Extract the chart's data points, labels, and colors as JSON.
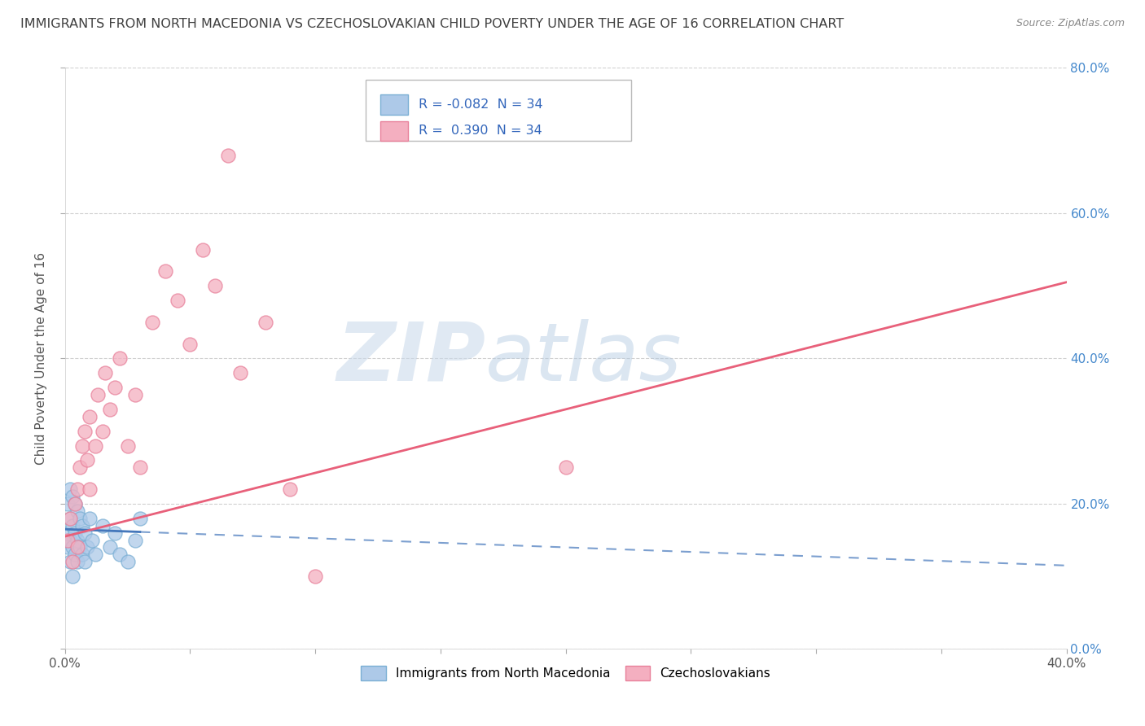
{
  "title": "IMMIGRANTS FROM NORTH MACEDONIA VS CZECHOSLOVAKIAN CHILD POVERTY UNDER THE AGE OF 16 CORRELATION CHART",
  "source": "Source: ZipAtlas.com",
  "ylabel": "Child Poverty Under the Age of 16",
  "ylabel_right_ticks": [
    "0.0%",
    "20.0%",
    "40.0%",
    "60.0%",
    "80.0%"
  ],
  "watermark_zip": "ZIP",
  "watermark_atlas": "atlas",
  "legend_blue_label": "Immigrants from North Macedonia",
  "legend_pink_label": "Czechoslovakians",
  "R_blue": -0.082,
  "R_pink": 0.39,
  "N_blue": 34,
  "N_pink": 34,
  "blue_color": "#adc9e8",
  "pink_color": "#f4afc0",
  "blue_edge_color": "#7aafd4",
  "pink_edge_color": "#e8809a",
  "blue_line_color": "#4477bb",
  "pink_line_color": "#e8607a",
  "background_color": "#ffffff",
  "grid_color": "#d0d0d0",
  "title_color": "#404040",
  "blue_scatter_x": [
    0.001,
    0.001,
    0.001,
    0.002,
    0.002,
    0.002,
    0.002,
    0.003,
    0.003,
    0.003,
    0.003,
    0.004,
    0.004,
    0.004,
    0.005,
    0.005,
    0.005,
    0.006,
    0.006,
    0.007,
    0.007,
    0.008,
    0.008,
    0.009,
    0.01,
    0.011,
    0.012,
    0.015,
    0.018,
    0.02,
    0.022,
    0.025,
    0.028,
    0.03
  ],
  "blue_scatter_y": [
    0.14,
    0.16,
    0.2,
    0.12,
    0.15,
    0.18,
    0.22,
    0.1,
    0.14,
    0.17,
    0.21,
    0.13,
    0.16,
    0.2,
    0.12,
    0.15,
    0.19,
    0.14,
    0.18,
    0.13,
    0.17,
    0.12,
    0.16,
    0.14,
    0.18,
    0.15,
    0.13,
    0.17,
    0.14,
    0.16,
    0.13,
    0.12,
    0.15,
    0.18
  ],
  "pink_scatter_x": [
    0.001,
    0.002,
    0.003,
    0.004,
    0.005,
    0.005,
    0.006,
    0.007,
    0.008,
    0.009,
    0.01,
    0.01,
    0.012,
    0.013,
    0.015,
    0.016,
    0.018,
    0.02,
    0.022,
    0.025,
    0.028,
    0.03,
    0.035,
    0.04,
    0.045,
    0.05,
    0.055,
    0.06,
    0.065,
    0.07,
    0.08,
    0.09,
    0.1,
    0.2
  ],
  "pink_scatter_y": [
    0.15,
    0.18,
    0.12,
    0.2,
    0.14,
    0.22,
    0.25,
    0.28,
    0.3,
    0.26,
    0.22,
    0.32,
    0.28,
    0.35,
    0.3,
    0.38,
    0.33,
    0.36,
    0.4,
    0.28,
    0.35,
    0.25,
    0.45,
    0.52,
    0.48,
    0.42,
    0.55,
    0.5,
    0.68,
    0.38,
    0.45,
    0.22,
    0.1,
    0.25
  ],
  "xlim": [
    0.0,
    0.4
  ],
  "ylim": [
    0.0,
    0.8
  ],
  "blue_line_x0": 0.0,
  "blue_line_y0": 0.165,
  "blue_line_x1": 0.4,
  "blue_line_y1": 0.115,
  "pink_line_x0": 0.0,
  "pink_line_y0": 0.155,
  "pink_line_x1": 0.4,
  "pink_line_y1": 0.505
}
